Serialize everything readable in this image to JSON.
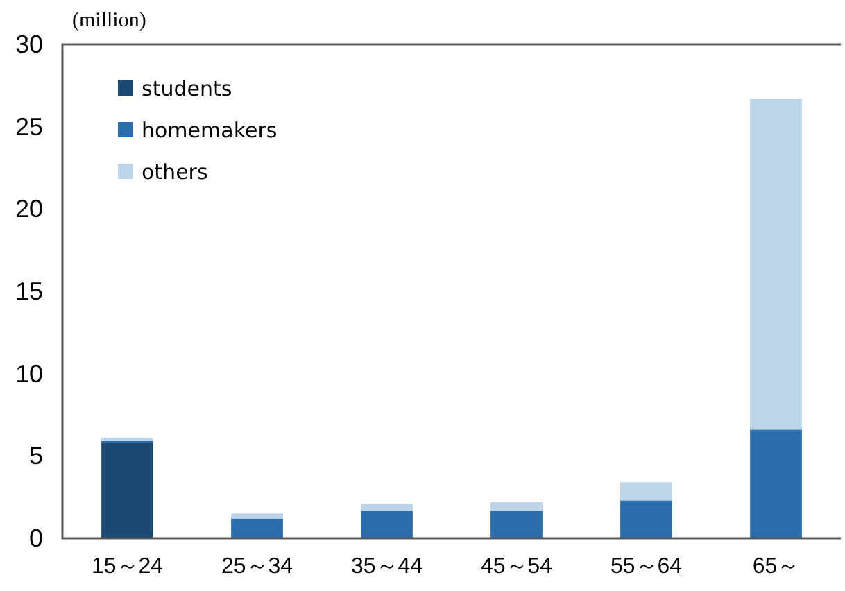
{
  "chart_data": {
    "type": "bar",
    "stacked": true,
    "ylabel": "(million)",
    "categories": [
      "15～24",
      "25～34",
      "35～44",
      "45～54",
      "55～64",
      "65～"
    ],
    "series": [
      {
        "name": "students",
        "color": "#1a4a72",
        "values": [
          5.8,
          0,
          0,
          0,
          0,
          0
        ]
      },
      {
        "name": "homemakers",
        "color": "#2a6ead",
        "values": [
          0.1,
          1.2,
          1.7,
          1.7,
          2.3,
          6.6
        ]
      },
      {
        "name": "others",
        "color": "#bcd5ea",
        "values": [
          0.2,
          0.3,
          0.4,
          0.5,
          1.1,
          20.1
        ]
      }
    ],
    "ylim": [
      0,
      30
    ],
    "yticks": [
      0,
      5,
      10,
      15,
      20,
      25,
      30
    ],
    "grid": false,
    "legend": "top left"
  }
}
